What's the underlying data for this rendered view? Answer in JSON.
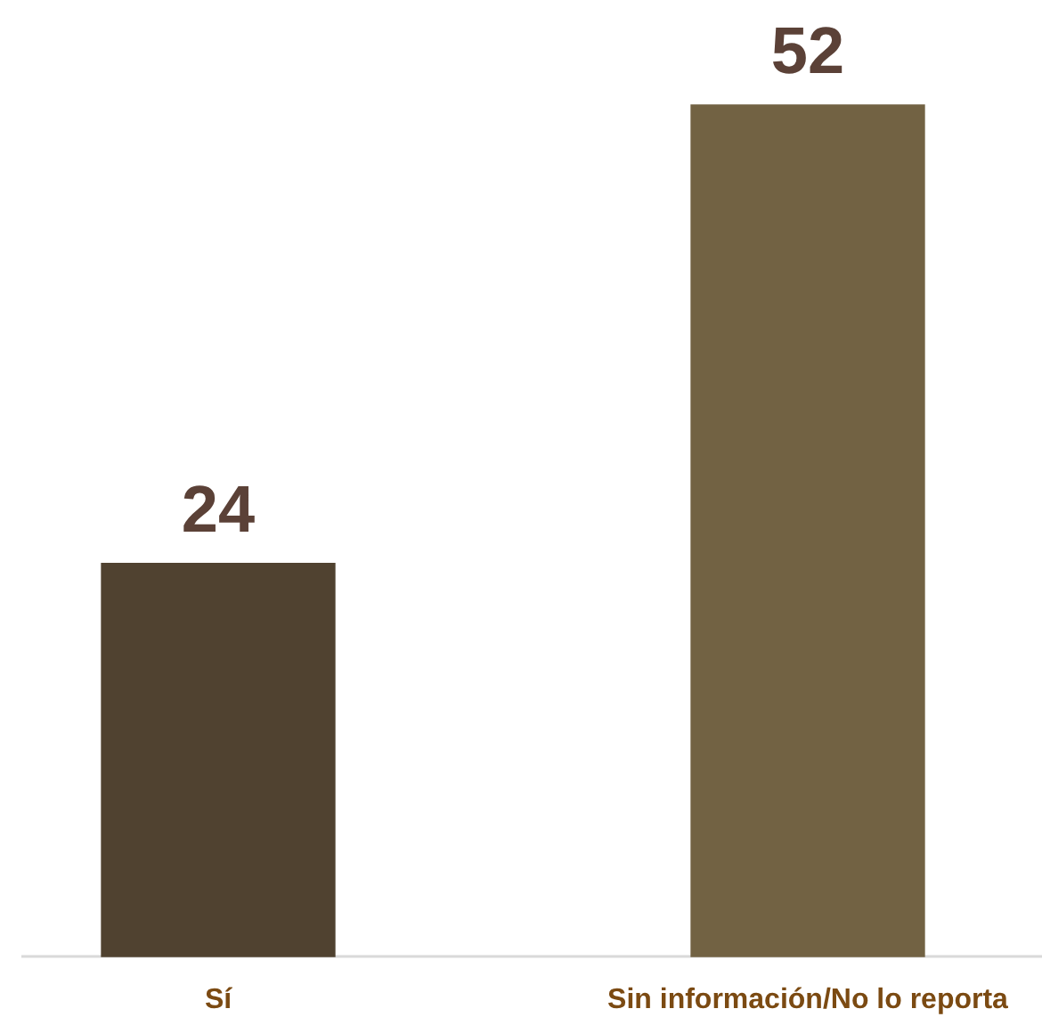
{
  "chart_data": {
    "type": "bar",
    "categories": [
      "Sí",
      "Sin información/No lo reporta"
    ],
    "values": [
      24,
      52
    ],
    "colors": [
      "#504230",
      "#726243"
    ],
    "data_labels": true,
    "grid": false,
    "legend": false
  }
}
